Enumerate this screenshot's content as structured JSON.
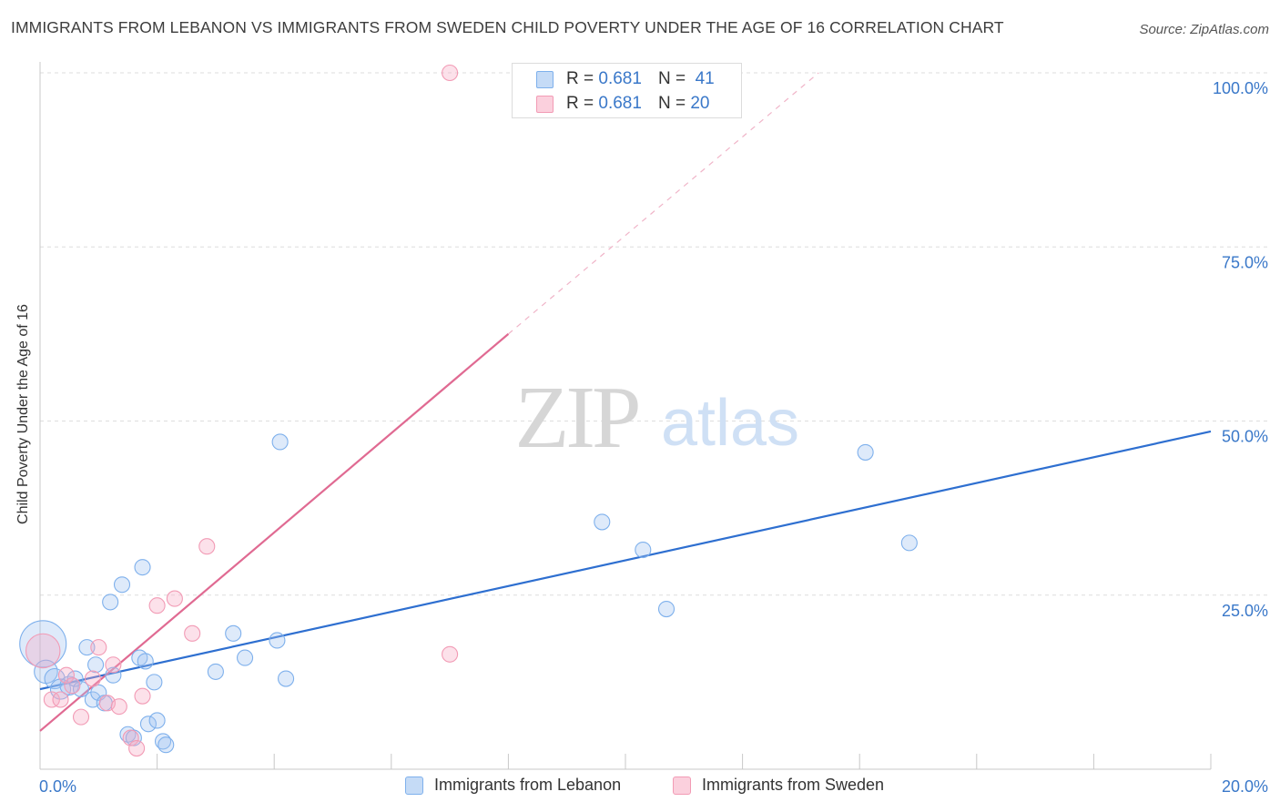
{
  "header": {
    "title": "IMMIGRANTS FROM LEBANON VS IMMIGRANTS FROM SWEDEN CHILD POVERTY UNDER THE AGE OF 16 CORRELATION CHART",
    "source": "Source: ZipAtlas.com"
  },
  "watermark": {
    "zip": "ZIP",
    "atlas": "atlas"
  },
  "legend": {
    "lebanon": {
      "r_label": "R =",
      "r_value": "0.681",
      "n_label": "N =",
      "n_value": "41",
      "color": "#7eb0ec"
    },
    "sweden": {
      "r_label": "R =",
      "r_value": "0.681",
      "n_label": "N =",
      "n_value": "20",
      "color": "#f29bb5"
    }
  },
  "bottom_legend": {
    "lebanon_label": "Immigrants from Lebanon",
    "sweden_label": "Immigrants from Sweden"
  },
  "chart_data": {
    "type": "scatter",
    "title": "IMMIGRANTS FROM LEBANON VS IMMIGRANTS FROM SWEDEN CHILD POVERTY UNDER THE AGE OF 16 CORRELATION CHART",
    "xlabel": "",
    "ylabel": "Child Poverty Under the Age of 16",
    "xlim": [
      0,
      20
    ],
    "ylim": [
      0,
      100
    ],
    "x_tick_labels": [
      {
        "value": 0,
        "label": "0.0%"
      },
      {
        "value": 20,
        "label": "20.0%"
      }
    ],
    "y_tick_labels": [
      {
        "value": 25,
        "label": "25.0%"
      },
      {
        "value": 50,
        "label": "50.0%"
      },
      {
        "value": 75,
        "label": "75.0%"
      },
      {
        "value": 100,
        "label": "100.0%"
      }
    ],
    "grid": true,
    "series": [
      {
        "name": "Immigrants from Lebanon",
        "color": "#7eb0ec",
        "line_color": "#2e6fd0",
        "trend": {
          "x0": 0,
          "y0": 11.5,
          "x1": 20,
          "y1": 48.5
        },
        "points": [
          [
            0.05,
            18,
            3
          ],
          [
            0.1,
            14,
            1.5
          ],
          [
            0.25,
            13,
            1.3
          ],
          [
            0.35,
            11.5,
            1.3
          ],
          [
            0.5,
            12,
            1.2
          ],
          [
            0.6,
            13,
            1
          ],
          [
            0.7,
            11.5,
            1
          ],
          [
            0.8,
            17.5,
            1
          ],
          [
            0.9,
            10,
            1
          ],
          [
            0.95,
            15,
            1
          ],
          [
            1.0,
            11,
            1
          ],
          [
            1.1,
            9.5,
            1
          ],
          [
            1.2,
            24,
            1
          ],
          [
            1.25,
            13.5,
            1
          ],
          [
            1.4,
            26.5,
            1
          ],
          [
            1.5,
            5,
            1
          ],
          [
            1.6,
            4.5,
            1
          ],
          [
            1.7,
            16,
            1
          ],
          [
            1.75,
            29,
            1
          ],
          [
            1.8,
            15.5,
            1
          ],
          [
            1.85,
            6.5,
            1
          ],
          [
            1.95,
            12.5,
            1
          ],
          [
            2.0,
            7,
            1
          ],
          [
            2.1,
            4,
            1
          ],
          [
            2.15,
            3.5,
            1
          ],
          [
            3.0,
            14,
            1
          ],
          [
            3.3,
            19.5,
            1
          ],
          [
            3.5,
            16,
            1
          ],
          [
            4.1,
            47,
            1
          ],
          [
            4.05,
            18.5,
            1
          ],
          [
            4.2,
            13,
            1
          ],
          [
            9.6,
            35.5,
            1
          ],
          [
            10.3,
            31.5,
            1
          ],
          [
            10.7,
            23,
            1
          ],
          [
            14.1,
            45.5,
            1
          ],
          [
            14.85,
            32.5,
            1
          ]
        ]
      },
      {
        "name": "Immigrants from Sweden",
        "color": "#f29bb5",
        "line_color": "#e06a92",
        "trend": {
          "x0": 0,
          "y0": 5.5,
          "x1": 8.0,
          "y1": 62.5,
          "dash_x1": 13.3,
          "dash_y1": 100
        },
        "points": [
          [
            0.05,
            17,
            2.2
          ],
          [
            0.2,
            10,
            1
          ],
          [
            0.35,
            10,
            1
          ],
          [
            0.45,
            13.5,
            1
          ],
          [
            0.55,
            12,
            1
          ],
          [
            0.7,
            7.5,
            1
          ],
          [
            0.9,
            13,
            1
          ],
          [
            1.0,
            17.5,
            1
          ],
          [
            1.15,
            9.5,
            1
          ],
          [
            1.25,
            15,
            1
          ],
          [
            1.35,
            9,
            1
          ],
          [
            1.55,
            4.5,
            1
          ],
          [
            1.65,
            3,
            1
          ],
          [
            1.75,
            10.5,
            1
          ],
          [
            2.0,
            23.5,
            1
          ],
          [
            2.3,
            24.5,
            1
          ],
          [
            2.6,
            19.5,
            1
          ],
          [
            2.85,
            32,
            1
          ],
          [
            7.0,
            16.5,
            1
          ],
          [
            7.0,
            100,
            1
          ]
        ]
      }
    ]
  }
}
